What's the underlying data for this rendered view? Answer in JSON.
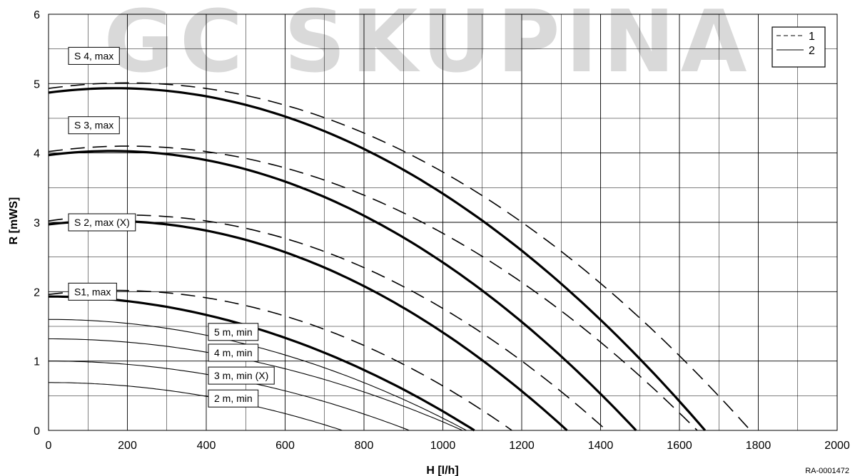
{
  "chart_data": {
    "type": "line",
    "xlabel": "H [l/h]",
    "ylabel": "R [mWS]",
    "xlim": [
      0,
      2000
    ],
    "ylim": [
      0,
      6
    ],
    "xticks": [
      0,
      200,
      400,
      600,
      800,
      1000,
      1200,
      1400,
      1600,
      1800,
      2000
    ],
    "yticks": [
      0,
      1,
      2,
      3,
      4,
      5,
      6
    ],
    "x_minor_step": 100,
    "y_minor_step": 0.5,
    "grid": true,
    "legend": {
      "position": "top-right",
      "entries": [
        {
          "label": "1",
          "style": "dashed"
        },
        {
          "label": "2",
          "style": "solid"
        }
      ]
    },
    "reference": "RA-0001472",
    "series": [
      {
        "label_text": "S 4, max",
        "style": "dashed",
        "H0": 4.93,
        "Hpeak": 200,
        "Qmax": 1780,
        "label_at": [
          0,
          5.4
        ]
      },
      {
        "label_text": "",
        "style": "solid-bold",
        "H0": 4.87,
        "Hpeak": 170,
        "Qmax": 1665
      },
      {
        "label_text": "S 3, max",
        "style": "dashed",
        "H0": 4.02,
        "Hpeak": 200,
        "Qmax": 1645,
        "label_at": [
          0,
          4.4
        ]
      },
      {
        "label_text": "",
        "style": "solid-bold",
        "H0": 3.97,
        "Hpeak": 160,
        "Qmax": 1490
      },
      {
        "label_text": "S 2, max (X)",
        "style": "dashed",
        "H0": 3.02,
        "Hpeak": 200,
        "Qmax": 1415,
        "label_at": [
          0,
          3.0
        ]
      },
      {
        "label_text": "",
        "style": "solid-bold",
        "H0": 2.97,
        "Hpeak": 150,
        "Qmax": 1315
      },
      {
        "label_text": "S1, max",
        "style": "dashed",
        "H0": 1.96,
        "Hpeak": 170,
        "Qmax": 1175,
        "label_at": [
          0,
          2.0
        ]
      },
      {
        "label_text": "",
        "style": "solid-bold",
        "H0": 1.93,
        "Hpeak": 0,
        "Qmax": 1080
      },
      {
        "label_text": "5 m, min",
        "style": "solid-thin",
        "H0": 1.6,
        "Hpeak": 0,
        "Qmax": 1060,
        "label_at": [
          1.32,
          1.42
        ]
      },
      {
        "label_text": "4 m, min",
        "style": "solid-thin",
        "H0": 1.32,
        "Hpeak": 0,
        "Qmax": 1050,
        "label_at": [
          1.32,
          1.12
        ]
      },
      {
        "label_text": "3 m, min (X)",
        "style": "solid-thin",
        "H0": 1.0,
        "Hpeak": 0,
        "Qmax": 915,
        "label_at": [
          1.32,
          0.79
        ]
      },
      {
        "label_text": "2 m, min",
        "style": "solid-thin",
        "H0": 0.69,
        "Hpeak": 0,
        "Qmax": 745,
        "label_at": [
          1.32,
          0.46
        ]
      }
    ]
  },
  "watermark": "GC SKUPINA"
}
